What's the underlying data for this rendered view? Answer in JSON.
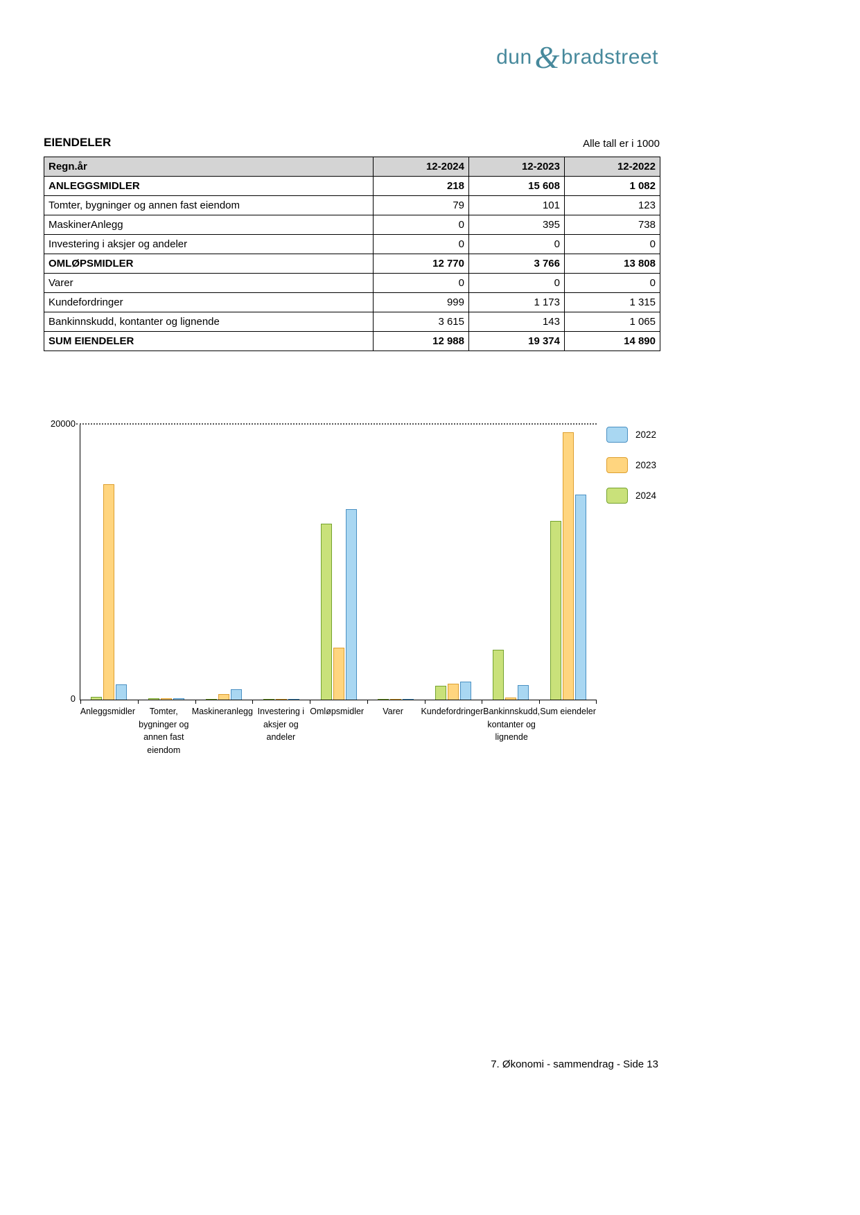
{
  "logo": {
    "dun": "dun",
    "amp": "&",
    "bradstreet": "bradstreet",
    "color": "#47899c"
  },
  "header": {
    "title": "EIENDELER",
    "note": "Alle tall er i 1000"
  },
  "table": {
    "columns": [
      "Regn.år",
      "12-2024",
      "12-2023",
      "12-2022"
    ],
    "rows": [
      {
        "label": "ANLEGGSMIDLER",
        "values": [
          "218",
          "15 608",
          "1 082"
        ],
        "bold": true
      },
      {
        "label": "Tomter, bygninger og annen fast eiendom",
        "values": [
          "79",
          "101",
          "123"
        ],
        "bold": false
      },
      {
        "label": "MaskinerAnlegg",
        "values": [
          "0",
          "395",
          "738"
        ],
        "bold": false
      },
      {
        "label": "Investering i aksjer og andeler",
        "values": [
          "0",
          "0",
          "0"
        ],
        "bold": false
      },
      {
        "label": "OMLØPSMIDLER",
        "values": [
          "12 770",
          "3 766",
          "13 808"
        ],
        "bold": true
      },
      {
        "label": "Varer",
        "values": [
          "0",
          "0",
          "0"
        ],
        "bold": false
      },
      {
        "label": "Kundefordringer",
        "values": [
          "999",
          "1 173",
          "1 315"
        ],
        "bold": false
      },
      {
        "label": "Bankinnskudd, kontanter og lignende",
        "values": [
          "3 615",
          "143",
          "1 065"
        ],
        "bold": false
      },
      {
        "label": "SUM EIENDELER",
        "values": [
          "12 988",
          "19 374",
          "14 890"
        ],
        "bold": true
      }
    ]
  },
  "chart_data": {
    "type": "bar",
    "title": "",
    "categories": [
      "Anleggsmidler",
      "Tomter, bygninger og annen fast eiendom",
      "Maskineranlegg",
      "Investering i aksjer og andeler",
      "Omløpsmidler",
      "Varer",
      "Kundefordringer",
      "Bankinnskudd, kontanter og lignende",
      "Sum eiendeler"
    ],
    "series": [
      {
        "name": "2024",
        "fill": "#c9e17a",
        "border": "#74a22e",
        "values": [
          218,
          79,
          0,
          0,
          12770,
          0,
          999,
          3615,
          12988
        ]
      },
      {
        "name": "2023",
        "fill": "#ffd57f",
        "border": "#dd9f2f",
        "values": [
          15608,
          101,
          395,
          0,
          3766,
          0,
          1173,
          143,
          19374
        ]
      },
      {
        "name": "2022",
        "fill": "#a9d7f2",
        "border": "#4a90c2",
        "values": [
          1082,
          123,
          738,
          0,
          13808,
          0,
          1315,
          1065,
          14890
        ]
      }
    ],
    "legend_order": [
      "2022",
      "2023",
      "2024"
    ],
    "legend_position": "right",
    "ylim": [
      0,
      20000
    ],
    "yticklabels": [
      "0",
      "20000"
    ],
    "grid": "dotted-line-at-top-only",
    "xlabel": "",
    "ylabel": ""
  },
  "footer": {
    "text": "7. Økonomi - sammendrag - Side 13"
  }
}
